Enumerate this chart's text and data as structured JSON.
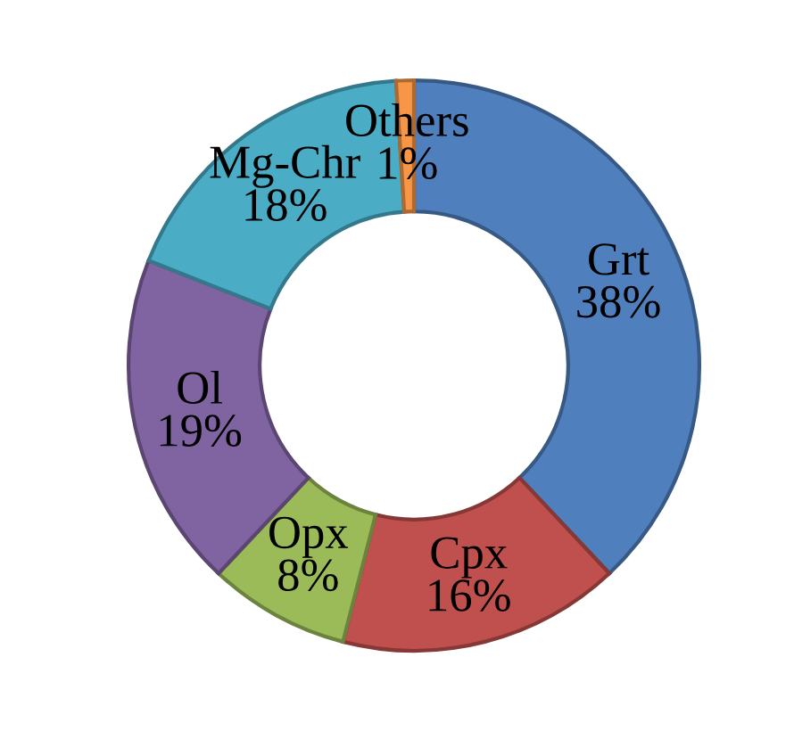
{
  "chart_data": {
    "type": "donut",
    "categories": [
      "Grt",
      "Cpx",
      "Opx",
      "Ol",
      "Mg-Chr",
      "Others"
    ],
    "values": [
      38,
      16,
      8,
      19,
      18,
      1
    ],
    "colors": [
      "#4f7fbc",
      "#c0504d",
      "#9bbb59",
      "#8064a2",
      "#4bacc6",
      "#f79646"
    ],
    "value_labels": [
      "38%",
      "16%",
      "8%",
      "19%",
      "18%",
      "1%"
    ]
  }
}
